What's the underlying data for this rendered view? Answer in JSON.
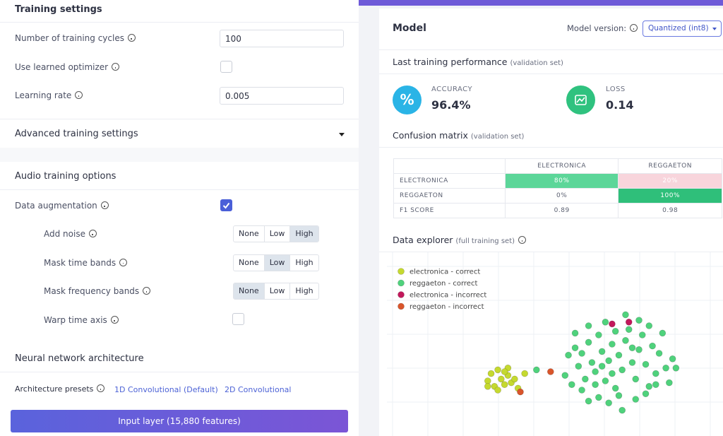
{
  "training_settings": {
    "title": "Training settings",
    "rows": [
      {
        "label": "Number of training cycles",
        "value": "100"
      },
      {
        "label": "Use learned optimizer",
        "checked": false
      },
      {
        "label": "Learning rate",
        "value": "0.005"
      }
    ]
  },
  "advanced_training_settings": "Advanced training settings",
  "audio_training_options": {
    "title": "Audio training options",
    "data_augmentation": {
      "label": "Data augmentation",
      "checked": true
    },
    "options": [
      {
        "label": "Add noise",
        "choices": [
          "None",
          "Low",
          "High"
        ],
        "selected": 2
      },
      {
        "label": "Mask time bands",
        "choices": [
          "None",
          "Low",
          "High"
        ],
        "selected": 1
      },
      {
        "label": "Mask frequency bands",
        "choices": [
          "None",
          "Low",
          "High"
        ],
        "selected": 0
      }
    ],
    "warp_time_axis": {
      "label": "Warp time axis",
      "checked": false
    }
  },
  "neural_network_architecture": {
    "title": "Neural network architecture",
    "presets_label": "Architecture presets",
    "presets": [
      "1D Convolutional (Default)",
      "2D Convolutional"
    ],
    "input_layer": "Input layer (15,880 features)"
  },
  "model": {
    "title": "Model",
    "version_label": "Model version:",
    "version": "Quantized (int8)"
  },
  "performance": {
    "title": "Last training performance",
    "subtitle": "(validation set)",
    "accuracy": {
      "label": "ACCURACY",
      "value": "96.4%",
      "icon": "%"
    },
    "loss": {
      "label": "LOSS",
      "value": "0.14"
    }
  },
  "confusion_matrix": {
    "title": "Confusion matrix",
    "subtitle": "(validation set)",
    "columns": [
      "ELECTRONICA",
      "REGGAETON"
    ],
    "rows": [
      {
        "label": "ELECTRONICA",
        "cells": [
          "80%",
          "20%"
        ]
      },
      {
        "label": "REGGAETON",
        "cells": [
          "0%",
          "100%"
        ]
      },
      {
        "label": "F1 SCORE",
        "cells": [
          "0.89",
          "0.98"
        ]
      }
    ]
  },
  "data_explorer": {
    "title": "Data explorer",
    "subtitle": "(full training set)",
    "series": [
      {
        "name": "electronica - correct",
        "color": "#c5d92f",
        "x": [
          30,
          31,
          32,
          33,
          34,
          35,
          36,
          37,
          36,
          33,
          38,
          41,
          30,
          39,
          35
        ],
        "y": [
          30,
          34,
          27,
          36,
          31,
          28,
          33,
          29,
          37,
          25,
          31,
          34,
          27,
          26,
          35
        ]
      },
      {
        "name": "reggaeton - correct",
        "color": "#4fd27c",
        "x": [
          44.5,
          53,
          55,
          57,
          54,
          56,
          58,
          60,
          61,
          62,
          63,
          64,
          65,
          66,
          67,
          68,
          69,
          70,
          71,
          72,
          73,
          74,
          75,
          76,
          77,
          78,
          79,
          80,
          81,
          82,
          83,
          84,
          85,
          86,
          63,
          66,
          70,
          74,
          60,
          58,
          56,
          60,
          65,
          71,
          75,
          78,
          67,
          73,
          62,
          69,
          77,
          80,
          59,
          64,
          68
        ],
        "y": [
          36,
          33,
          28,
          38,
          44,
          48,
          45,
          51,
          40,
          35,
          55,
          46,
          30,
          41,
          50,
          26,
          44,
          36,
          52,
          58,
          40,
          31,
          47,
          55,
          39,
          27,
          49,
          34,
          45,
          56,
          37,
          29,
          42,
          37,
          21,
          18,
          14,
          20,
          19,
          25,
          56,
          60,
          62,
          66,
          63,
          60,
          34,
          48,
          28,
          22,
          23,
          28,
          31,
          38,
          57
        ]
      },
      {
        "name": "electronica - incorrect",
        "color": "#c2185b",
        "x": [
          67,
          72
        ],
        "y": [
          61,
          62
        ]
      },
      {
        "name": "reggaeton - incorrect",
        "color": "#d9552b",
        "x": [
          48.7,
          39.7
        ],
        "y": [
          35,
          24
        ]
      }
    ]
  }
}
